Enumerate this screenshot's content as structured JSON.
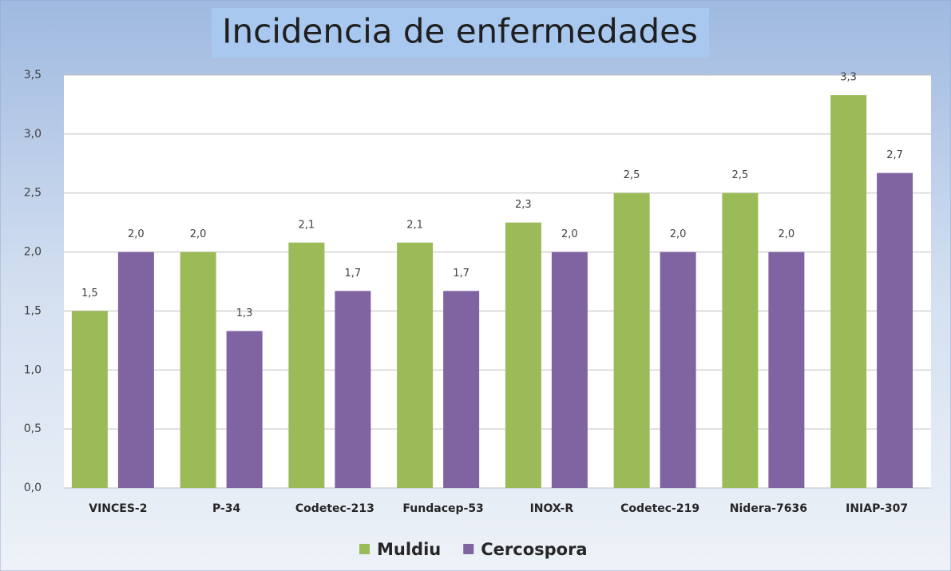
{
  "chart_data": {
    "type": "bar",
    "title": "Incidencia de enfermedades",
    "categories": [
      "VINCES-2",
      "P-34",
      "Codetec-213",
      "Fundacep-53",
      "INOX-R",
      "Codetec-219",
      "Nidera-7636",
      "INIAP-307"
    ],
    "series": [
      {
        "name": "Muldiu",
        "color": "#9bbb59",
        "values": [
          1.5,
          2.0,
          2.08,
          2.08,
          2.25,
          2.5,
          2.5,
          3.33
        ],
        "value_labels": [
          "1,5",
          "2,0",
          "2,1",
          "2,1",
          "2,3",
          "2,5",
          "2,5",
          "3,3"
        ]
      },
      {
        "name": "Cercospora",
        "color": "#8064a2",
        "values": [
          2.0,
          1.33,
          1.67,
          1.67,
          2.0,
          2.0,
          2.0,
          2.67
        ],
        "value_labels": [
          "2,0",
          "1,3",
          "1,7",
          "1,7",
          "2,0",
          "2,0",
          "2,0",
          "2,7"
        ]
      }
    ],
    "ylim": [
      0,
      3.5
    ],
    "yticks": [
      {
        "value": 0,
        "label": "0,0"
      },
      {
        "value": 0.5,
        "label": "0,5"
      },
      {
        "value": 1,
        "label": "1,0"
      },
      {
        "value": 1.5,
        "label": "1,5"
      },
      {
        "value": 2,
        "label": "2,0"
      },
      {
        "value": 2.5,
        "label": "2,5"
      },
      {
        "value": 3,
        "label": "3,0"
      },
      {
        "value": 3.5,
        "label": "3,5"
      }
    ],
    "grid": true,
    "legend": "bottom"
  }
}
